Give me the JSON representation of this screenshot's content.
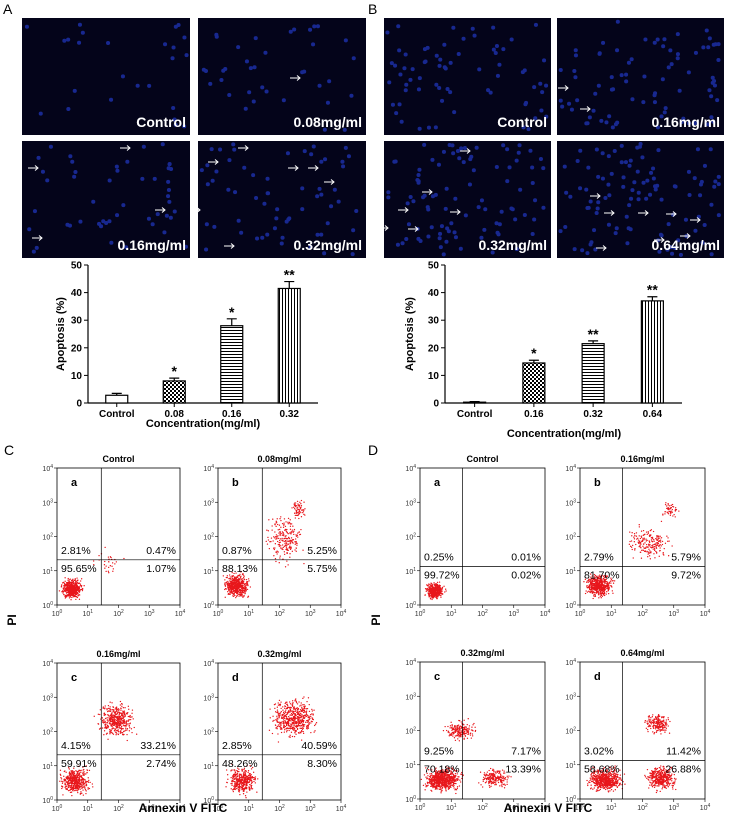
{
  "panel_labels": [
    "A",
    "B",
    "C",
    "D"
  ],
  "images": [
    [
      "Control",
      "0.08mg/ml",
      "0.16mg/ml",
      "0.32mg/ml"
    ],
    [
      "Control",
      "0.16mg/ml",
      "0.32mg/ml",
      "0.64mg/ml"
    ]
  ],
  "chart_data": [
    {
      "type": "bar",
      "y_label": "Apoptosis (%)",
      "x_label": "Concentration(mg/ml)",
      "categories": [
        "Control",
        "0.08",
        "0.16",
        "0.32"
      ],
      "values": [
        2.8,
        8,
        28,
        41.5
      ],
      "errors": [
        0.7,
        1,
        2.5,
        2.5
      ],
      "significance": [
        null,
        "*",
        "*",
        "**"
      ],
      "patterns": [
        "plain",
        "checker",
        "horizontal",
        "vertical"
      ],
      "ylim": [
        0,
        50
      ],
      "yticks": [
        0,
        10,
        20,
        30,
        40,
        50
      ],
      "color": "#000000"
    },
    {
      "type": "bar",
      "y_label": "Apoptosis (%)",
      "x_label": "Concentration(mg/ml)",
      "categories": [
        "Control",
        "0.16",
        "0.32",
        "0.64"
      ],
      "values": [
        0.3,
        14.5,
        21.5,
        37
      ],
      "errors": [
        0.2,
        1,
        1,
        1.5
      ],
      "significance": [
        null,
        "*",
        "**",
        "**"
      ],
      "patterns": [
        "plain",
        "checker",
        "horizontal",
        "vertical"
      ],
      "ylim": [
        0,
        50
      ],
      "yticks": [
        0,
        10,
        20,
        30,
        40,
        50
      ],
      "color": "#000000"
    }
  ],
  "flow": {
    "y_label": "PI",
    "x_label": "Annexin V FITC",
    "ticks": [
      {
        "base": "10",
        "exp": "0"
      },
      {
        "base": "10",
        "exp": "1"
      },
      {
        "base": "10",
        "exp": "2"
      },
      {
        "base": "10",
        "exp": "3"
      },
      {
        "base": "10",
        "exp": "4"
      }
    ],
    "groups": [
      [
        {
          "letter": "a",
          "title": "Control",
          "quadrants": [
            "2.81%",
            "0.47%",
            "95.65%",
            "1.07%"
          ]
        },
        {
          "letter": "b",
          "title": "0.08mg/ml",
          "quadrants": [
            "0.87%",
            "5.25%",
            "88.13%",
            "5.75%"
          ]
        },
        {
          "letter": "c",
          "title": "0.16mg/ml",
          "quadrants": [
            "4.15%",
            "33.21%",
            "59.91%",
            "2.74%"
          ]
        },
        {
          "letter": "d",
          "title": "0.32mg/ml",
          "quadrants": [
            "2.85%",
            "40.59%",
            "48.26%",
            "8.30%"
          ]
        }
      ],
      [
        {
          "letter": "a",
          "title": "Control",
          "quadrants": [
            "0.25%",
            "0.01%",
            "99.72%",
            "0.02%"
          ]
        },
        {
          "letter": "b",
          "title": "0.16mg/ml",
          "quadrants": [
            "2.79%",
            "5.79%",
            "81.70%",
            "9.72%"
          ]
        },
        {
          "letter": "c",
          "title": "0.32mg/ml",
          "quadrants": [
            "9.25%",
            "7.17%",
            "70.18%",
            "13.39%"
          ]
        },
        {
          "letter": "d",
          "title": "0.64mg/ml",
          "quadrants": [
            "3.02%",
            "11.42%",
            "58.68%",
            "26.88%"
          ]
        }
      ]
    ]
  }
}
